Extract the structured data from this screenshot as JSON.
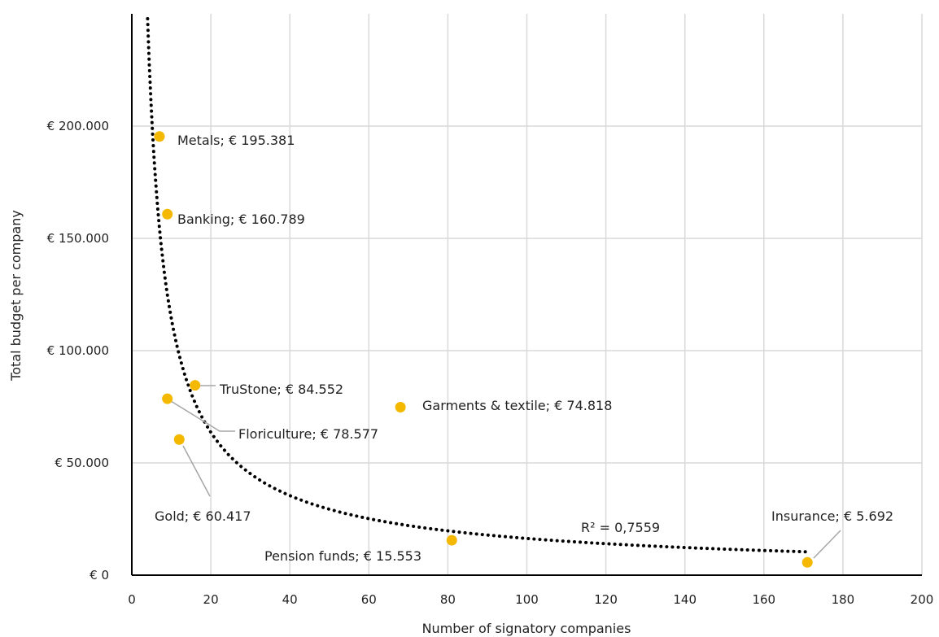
{
  "chart_data": {
    "type": "scatter",
    "xlabel": "Number of signatory companies",
    "ylabel": "Total budget per company",
    "xlim": [
      0,
      200
    ],
    "ylim": [
      0,
      250000
    ],
    "x_ticks": [
      0,
      20,
      40,
      60,
      80,
      100,
      120,
      140,
      160,
      180,
      200
    ],
    "y_ticks": [
      0,
      50000,
      100000,
      150000,
      200000
    ],
    "x_tick_labels": [
      "0",
      "20",
      "40",
      "60",
      "80",
      "100",
      "120",
      "140",
      "160",
      "180",
      "200"
    ],
    "y_tick_labels": [
      "€ 0",
      "€ 50.000",
      "€ 100.000",
      "€ 150.000",
      "€ 200.000"
    ],
    "grid": true,
    "points": [
      {
        "name": "Metals",
        "x": 7,
        "y": 195381,
        "label": "Metals; € 195.381"
      },
      {
        "name": "Banking",
        "x": 9,
        "y": 160789,
        "label": "Banking; € 160.789"
      },
      {
        "name": "TruStone",
        "x": 16,
        "y": 84552,
        "label": "TruStone; € 84.552"
      },
      {
        "name": "Floriculture",
        "x": 9,
        "y": 78577,
        "label": "Floriculture; € 78.577"
      },
      {
        "name": "Gold",
        "x": 12,
        "y": 60417,
        "label": "Gold; € 60.417"
      },
      {
        "name": "Garments & textile",
        "x": 68,
        "y": 74818,
        "label": "Garments & textile; € 74.818"
      },
      {
        "name": "Pension funds",
        "x": 81,
        "y": 15553,
        "label": "Pension funds; € 15.553"
      },
      {
        "name": "Insurance",
        "x": 171,
        "y": 5692,
        "label": "Insurance; € 5.692"
      }
    ],
    "trendline": {
      "type": "power",
      "r_squared_label": "R² = 0,7559",
      "x_range": [
        4,
        171
      ]
    },
    "colors": {
      "points": "#f5b800",
      "trendline": "#000000",
      "grid": "#d9d9d9"
    }
  }
}
